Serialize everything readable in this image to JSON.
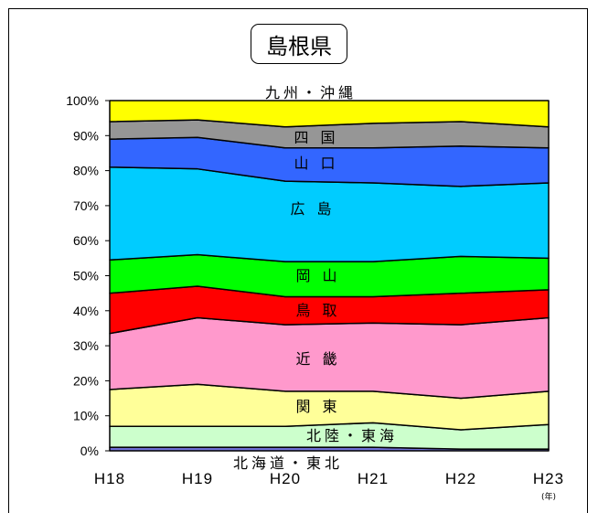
{
  "chart_data": {
    "type": "area",
    "title": "島根県",
    "x_unit": "(年)",
    "categories": [
      "H18",
      "H19",
      "H20",
      "H21",
      "H22",
      "H23"
    ],
    "ylim": [
      0,
      100
    ],
    "yticks": [
      "0%",
      "10%",
      "20%",
      "30%",
      "40%",
      "50%",
      "60%",
      "70%",
      "80%",
      "90%",
      "100%"
    ],
    "stacked_percent": true,
    "series": [
      {
        "name": "北海道・東北",
        "color": "#6f6fd6",
        "values": [
          1,
          1,
          1,
          1,
          0.5,
          0.5
        ]
      },
      {
        "name": "北陸・東海",
        "color": "#ccffcc",
        "values": [
          6,
          6,
          6,
          7,
          5.5,
          7
        ]
      },
      {
        "name": "関 東",
        "color": "#ffff99",
        "values": [
          10.5,
          12,
          10,
          9,
          9,
          9.5
        ]
      },
      {
        "name": "近 畿",
        "color": "#ff99cc",
        "values": [
          16,
          19,
          19,
          19.5,
          21,
          21
        ]
      },
      {
        "name": "鳥 取",
        "color": "#ff0000",
        "values": [
          11.5,
          9,
          8,
          7.5,
          9,
          8
        ]
      },
      {
        "name": "岡 山",
        "color": "#00ff00",
        "values": [
          9.5,
          9,
          10,
          10,
          10.5,
          9
        ]
      },
      {
        "name": "広 島",
        "color": "#00ccff",
        "values": [
          26.5,
          24.5,
          23,
          22.5,
          20,
          21.5
        ]
      },
      {
        "name": "山 口",
        "color": "#3366ff",
        "values": [
          8,
          9,
          9.5,
          10,
          11.5,
          10
        ]
      },
      {
        "name": "四 国",
        "color": "#969696",
        "values": [
          5,
          5,
          6,
          7,
          7,
          6
        ]
      },
      {
        "name": "九州・沖縄",
        "color": "#ffff00",
        "values": [
          6,
          5.5,
          7.5,
          6.5,
          6,
          7.5
        ]
      }
    ],
    "grid": false,
    "legend": "inline"
  }
}
